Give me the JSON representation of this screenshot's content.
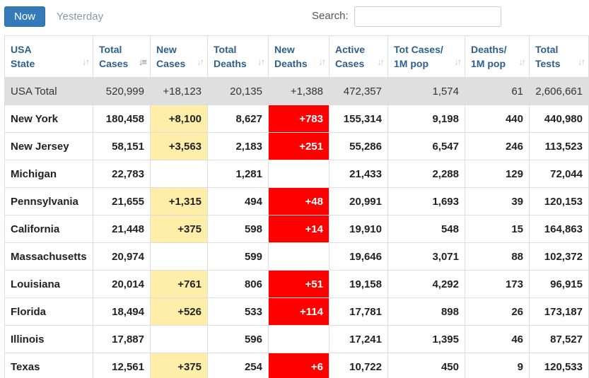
{
  "tabs": {
    "now": "Now",
    "yesterday": "Yesterday"
  },
  "search": {
    "label": "Search:",
    "value": "",
    "placeholder": ""
  },
  "columns": [
    {
      "line1": "USA",
      "line2": "State"
    },
    {
      "line1": "Total",
      "line2": "Cases"
    },
    {
      "line1": "New",
      "line2": "Cases"
    },
    {
      "line1": "Total",
      "line2": "Deaths"
    },
    {
      "line1": "New",
      "line2": "Deaths"
    },
    {
      "line1": "Active",
      "line2": "Cases"
    },
    {
      "line1": "Tot Cases/",
      "line2": "1M pop"
    },
    {
      "line1": "Deaths/",
      "line2": "1M pop"
    },
    {
      "line1": "Total",
      "line2": "Tests"
    }
  ],
  "sort": {
    "active_column": "Total Cases",
    "direction": "descending"
  },
  "colors": {
    "new_cases_highlight": "#ffeeaa",
    "new_deaths_highlight": "#ff0000",
    "total_row": "#dfdfdf",
    "accent": "#337ab7"
  },
  "total_row": {
    "state": "USA Total",
    "total_cases": "520,999",
    "new_cases": "+18,123",
    "total_deaths": "20,135",
    "new_deaths": "+1,388",
    "active_cases": "472,357",
    "cases_per_1m": "1,574",
    "deaths_per_1m": "61",
    "total_tests": "2,606,661"
  },
  "rows": [
    {
      "state": "New York",
      "total_cases": "180,458",
      "new_cases": "+8,100",
      "total_deaths": "8,627",
      "new_deaths": "+783",
      "active_cases": "155,314",
      "cases_per_1m": "9,198",
      "deaths_per_1m": "440",
      "total_tests": "440,980"
    },
    {
      "state": "New Jersey",
      "total_cases": "58,151",
      "new_cases": "+3,563",
      "total_deaths": "2,183",
      "new_deaths": "+251",
      "active_cases": "55,286",
      "cases_per_1m": "6,547",
      "deaths_per_1m": "246",
      "total_tests": "113,523"
    },
    {
      "state": "Michigan",
      "total_cases": "22,783",
      "new_cases": "",
      "total_deaths": "1,281",
      "new_deaths": "",
      "active_cases": "21,433",
      "cases_per_1m": "2,288",
      "deaths_per_1m": "129",
      "total_tests": "72,044"
    },
    {
      "state": "Pennsylvania",
      "total_cases": "21,655",
      "new_cases": "+1,315",
      "total_deaths": "494",
      "new_deaths": "+48",
      "active_cases": "20,991",
      "cases_per_1m": "1,693",
      "deaths_per_1m": "39",
      "total_tests": "120,153"
    },
    {
      "state": "California",
      "total_cases": "21,448",
      "new_cases": "+375",
      "total_deaths": "598",
      "new_deaths": "+14",
      "active_cases": "19,910",
      "cases_per_1m": "548",
      "deaths_per_1m": "15",
      "total_tests": "164,863"
    },
    {
      "state": "Massachusetts",
      "total_cases": "20,974",
      "new_cases": "",
      "total_deaths": "599",
      "new_deaths": "",
      "active_cases": "19,646",
      "cases_per_1m": "3,071",
      "deaths_per_1m": "88",
      "total_tests": "102,372"
    },
    {
      "state": "Louisiana",
      "total_cases": "20,014",
      "new_cases": "+761",
      "total_deaths": "806",
      "new_deaths": "+51",
      "active_cases": "19,158",
      "cases_per_1m": "4,292",
      "deaths_per_1m": "173",
      "total_tests": "96,915"
    },
    {
      "state": "Florida",
      "total_cases": "18,494",
      "new_cases": "+526",
      "total_deaths": "533",
      "new_deaths": "+114",
      "active_cases": "17,781",
      "cases_per_1m": "898",
      "deaths_per_1m": "26",
      "total_tests": "173,187"
    },
    {
      "state": "Illinois",
      "total_cases": "17,887",
      "new_cases": "",
      "total_deaths": "596",
      "new_deaths": "",
      "active_cases": "17,241",
      "cases_per_1m": "1,395",
      "deaths_per_1m": "46",
      "total_tests": "87,527"
    },
    {
      "state": "Texas",
      "total_cases": "12,561",
      "new_cases": "+375",
      "total_deaths": "254",
      "new_deaths": "+6",
      "active_cases": "10,722",
      "cases_per_1m": "450",
      "deaths_per_1m": "9",
      "total_tests": "120,533"
    }
  ]
}
